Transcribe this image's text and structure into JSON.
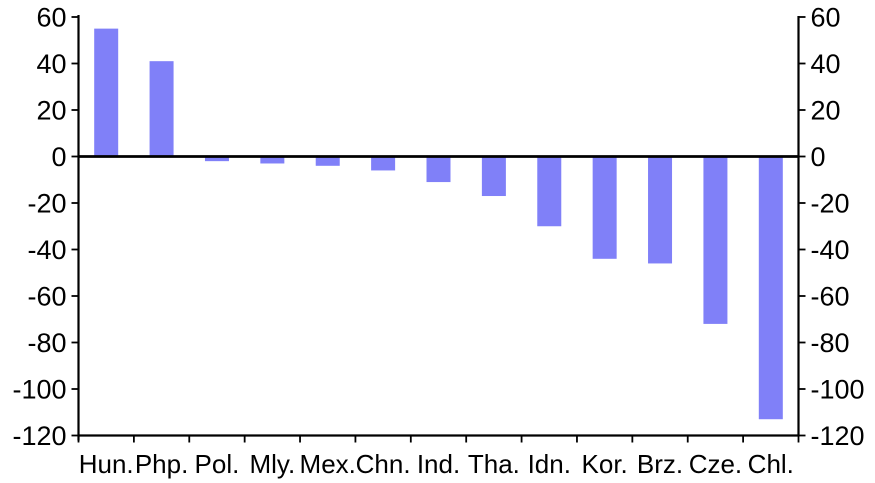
{
  "chart_data": {
    "type": "bar",
    "title": "",
    "xlabel": "",
    "ylabel": "",
    "categories": [
      "Hun.",
      "Php.",
      "Pol.",
      "Mly.",
      "Mex.",
      "Chn.",
      "Ind.",
      "Tha.",
      "Idn.",
      "Kor.",
      "Brz.",
      "Cze.",
      "Chl."
    ],
    "values": [
      55,
      41,
      -2,
      -3,
      -4,
      -6,
      -11,
      -17,
      -30,
      -44,
      -46,
      -72,
      -113
    ],
    "ylim": [
      -120,
      60
    ],
    "yticks": [
      60,
      40,
      20,
      0,
      -20,
      -40,
      -60,
      -80,
      -100,
      -120
    ],
    "dual_y_axis": true,
    "grid": false,
    "legend_position": "none",
    "bar_color": "#8080F8",
    "axis_color": "#000000",
    "label_color": "#000000"
  }
}
